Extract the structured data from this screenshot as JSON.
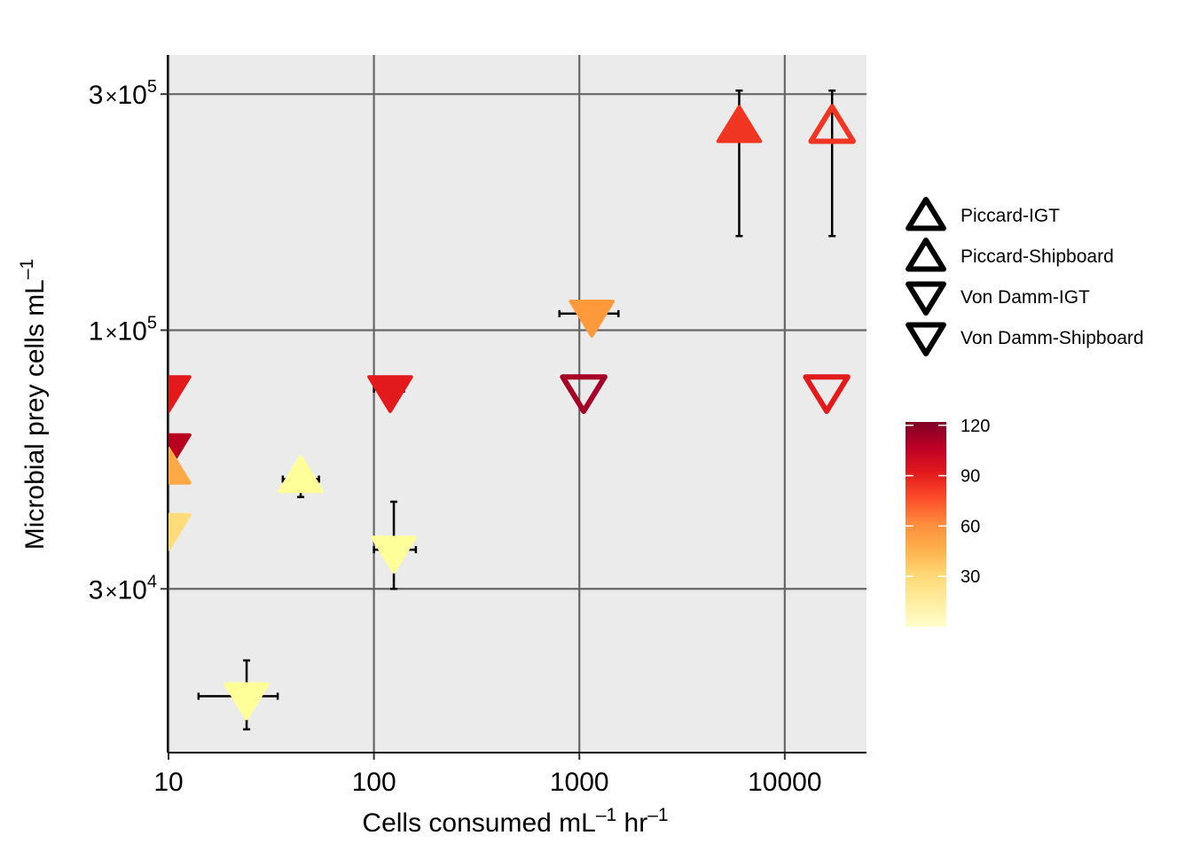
{
  "chart_data": {
    "type": "scatter",
    "xlabel": {
      "main": "Cells consumed  mL",
      "sup1": "–1",
      "mid": " hr",
      "sup2": "–1"
    },
    "ylabel": {
      "main": "Microbial prey cells  mL",
      "sup": "–1"
    },
    "x_scale": "log10",
    "y_scale": "log10",
    "xlim": [
      9.9,
      25000
    ],
    "ylim": [
      14000,
      360000
    ],
    "x_ticks": [
      {
        "value": 10,
        "label": "10"
      },
      {
        "value": 100,
        "label": "100"
      },
      {
        "value": 1000,
        "label": "1000"
      },
      {
        "value": 10000,
        "label": "10000"
      }
    ],
    "y_ticks": [
      {
        "value": 30000,
        "mant": "3",
        "times": "×",
        "base": "10",
        "exp": "4"
      },
      {
        "value": 100000,
        "mant": "1",
        "times": "×",
        "base": "10",
        "exp": "5"
      },
      {
        "value": 300000,
        "mant": "3",
        "times": "×",
        "base": "10",
        "exp": "5"
      }
    ],
    "grid": true,
    "panel_color": "#EBEBEB",
    "grid_color": "#666666",
    "legend_position": "right",
    "shape_legend": [
      {
        "label": "Piccard-IGT",
        "shape": "triangle-up-open"
      },
      {
        "label": "Piccard-Shipboard",
        "shape": "triangle-up-open"
      },
      {
        "label": "Von Damm-IGT",
        "shape": "triangle-down-open"
      },
      {
        "label": "Von Damm-Shipboard",
        "shape": "triangle-down-open"
      }
    ],
    "colorbar": {
      "ticks": [
        "120",
        "90",
        "60",
        "30"
      ],
      "tick_values": [
        120,
        90,
        60,
        30
      ],
      "min": 0,
      "max": 122,
      "colors": [
        "#800026",
        "#BD0026",
        "#E31A1C",
        "#FC4E2A",
        "#FD8D3C",
        "#FEB24C",
        "#FED976",
        "#FFEDA0",
        "#FFFFCC"
      ]
    },
    "points": [
      {
        "site": "Piccard",
        "method": "IGT",
        "x": 6000,
        "y": 255000,
        "color": "#F03523",
        "yerr": [
          155000,
          305000
        ]
      },
      {
        "site": "Piccard",
        "method": "Shipboard",
        "x": 17000,
        "y": 255000,
        "color": "#F03523",
        "yerr": [
          155000,
          305000
        ]
      },
      {
        "site": "Von Damm",
        "method": "IGT",
        "x": 1150,
        "y": 108000,
        "color": "#FE9A3C",
        "xerr": [
          800,
          1550
        ]
      },
      {
        "site": "Von Damm",
        "method": "IGT",
        "x": 10,
        "y": 76000,
        "color": "#E31A1C"
      },
      {
        "site": "Von Damm",
        "method": "IGT",
        "x": 120,
        "y": 76000,
        "color": "#E31A1C",
        "xerr": [
          100,
          140
        ]
      },
      {
        "site": "Von Damm",
        "method": "Shipboard",
        "x": 1050,
        "y": 76000,
        "color": "#A50026"
      },
      {
        "site": "Von Damm",
        "method": "Shipboard",
        "x": 16000,
        "y": 76000,
        "color": "#E31A1C"
      },
      {
        "site": "Von Damm",
        "method": "IGT",
        "x": 10,
        "y": 58000,
        "color": "#B8001F"
      },
      {
        "site": "Piccard",
        "method": "IGT",
        "x": 10,
        "y": 52000,
        "color": "#FEA946"
      },
      {
        "site": "Piccard",
        "method": "IGT",
        "x": 44,
        "y": 50000,
        "color": "#FFFF99",
        "xerr": [
          36,
          54
        ],
        "yerr": [
          46000,
          54000
        ]
      },
      {
        "site": "Von Damm",
        "method": "IGT",
        "x": 10,
        "y": 40000,
        "color": "#FEDC7A"
      },
      {
        "site": "Von Damm",
        "method": "IGT",
        "x": 125,
        "y": 36000,
        "color": "#FFFF99",
        "xerr": [
          100,
          160
        ],
        "yerr": [
          30000,
          45000
        ]
      },
      {
        "site": "Von Damm",
        "method": "IGT",
        "x": 24,
        "y": 18200,
        "color": "#FFFF99",
        "xerr": [
          14,
          34
        ],
        "yerr": [
          15600,
          21500
        ]
      }
    ]
  }
}
